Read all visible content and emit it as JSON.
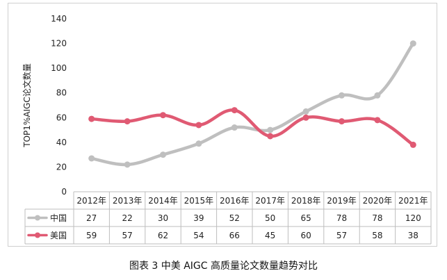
{
  "caption": "图表 3  中美 AIGC 高质量论文数量趋势对比",
  "chart_data": {
    "type": "line",
    "title": "",
    "ylabel": "TOP1%AIGC论文数量",
    "xlabel": "",
    "ylim": [
      0,
      140
    ],
    "yticks": [
      0,
      20,
      40,
      60,
      80,
      100,
      120,
      140
    ],
    "grid": false,
    "legend": "data-table-left",
    "categories": [
      "2012年",
      "2013年",
      "2014年",
      "2015年",
      "2016年",
      "2017年",
      "2018年",
      "2019年",
      "2020年",
      "2021年"
    ],
    "series": [
      {
        "name": "中国",
        "color": "#bfbfbf",
        "values": [
          27,
          22,
          30,
          39,
          52,
          50,
          65,
          78,
          78,
          120
        ]
      },
      {
        "name": "美国",
        "color": "#e05a73",
        "values": [
          59,
          57,
          62,
          54,
          66,
          45,
          60,
          57,
          58,
          38
        ]
      }
    ]
  }
}
